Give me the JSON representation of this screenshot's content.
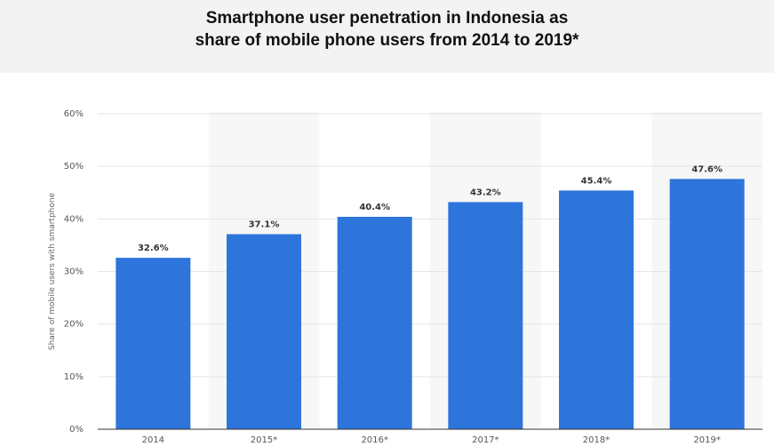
{
  "colors": {
    "bar": "#2e75db",
    "band": "#f7f7f7",
    "grid": "#e6e6e6",
    "header_bg": "#f3f3f3"
  },
  "title_lines": [
    "Smartphone user penetration in Indonesia as",
    "share of mobile phone users from 2014 to 2019*"
  ],
  "chart_data": {
    "type": "bar",
    "title": "Smartphone user penetration in Indonesia as share of mobile phone users from 2014 to 2019*",
    "xlabel": "",
    "ylabel": "Share of mobile users with smartphone",
    "categories": [
      "2014",
      "2015*",
      "2016*",
      "2017*",
      "2018*",
      "2019*"
    ],
    "values": [
      32.6,
      37.1,
      40.4,
      43.2,
      45.4,
      47.6
    ],
    "value_labels": [
      "32.6%",
      "37.1%",
      "40.4%",
      "43.2%",
      "45.4%",
      "47.6%"
    ],
    "ylim": [
      0,
      60
    ],
    "yticks": [
      0,
      10,
      20,
      30,
      40,
      50,
      60
    ],
    "ytick_labels": [
      "0%",
      "10%",
      "20%",
      "30%",
      "40%",
      "50%",
      "60%"
    ],
    "grid": true,
    "legend": "none"
  }
}
